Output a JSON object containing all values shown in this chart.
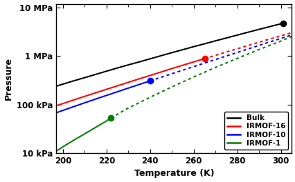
{
  "xlabel": "Temperature (K)",
  "ylabel": "Pressure",
  "xlim": [
    197,
    305
  ],
  "ylim_log": [
    10000.0,
    12000000.0
  ],
  "xticks": [
    200,
    220,
    240,
    260,
    280,
    300
  ],
  "yticks_log": [
    10000.0,
    100000.0,
    1000000.0,
    10000000.0
  ],
  "ytick_labels": [
    "10 kPa",
    "100 kPa",
    "1 MPa",
    "10 MPa"
  ],
  "bg_color": "#ffffff",
  "series": {
    "bulk": {
      "color": "black",
      "x_solid": [
        197,
        200,
        205,
        210,
        215,
        220,
        225,
        230,
        235,
        240,
        245,
        250,
        255,
        260,
        265,
        270,
        275,
        280,
        285,
        290,
        295,
        300,
        302
      ],
      "y_solid": [
        240000.0,
        265000.0,
        310000.0,
        360000.0,
        420000.0,
        490000.0,
        570000.0,
        660000.0,
        760000.0,
        880000.0,
        1020000.0,
        1180000.0,
        1360000.0,
        1570000.0,
        1800000.0,
        2070000.0,
        2370000.0,
        2720000.0,
        3120000.0,
        3570000.0,
        4080000.0,
        4650000.0,
        4900000.0
      ],
      "dot_x": 301,
      "dot_y": 4780000.0
    },
    "irmof16": {
      "color": "red",
      "x_solid": [
        197,
        200,
        205,
        210,
        215,
        220,
        225,
        230,
        235,
        240,
        245,
        250,
        255,
        260,
        265
      ],
      "y_solid": [
        95000.0,
        105000.0,
        125000.0,
        148000.0,
        175000.0,
        207000.0,
        244000.0,
        288000.0,
        340000.0,
        400000.0,
        470000.0,
        555000.0,
        650000.0,
        760000.0,
        890000.0
      ],
      "x_dotted": [
        265,
        270,
        275,
        280,
        285,
        290,
        295,
        300,
        305
      ],
      "y_dotted": [
        890000.0,
        1040000.0,
        1220000.0,
        1420000.0,
        1660000.0,
        1940000.0,
        2260000.0,
        2620000.0,
        3050000.0
      ],
      "dot_x": 265,
      "dot_y": 890000.0
    },
    "irmof10": {
      "color": "blue",
      "x_solid": [
        197,
        200,
        205,
        210,
        215,
        220,
        225,
        230,
        235,
        240
      ],
      "y_solid": [
        68000.0,
        76000.0,
        91000.0,
        109000.0,
        130000.0,
        155000.0,
        184000.0,
        219000.0,
        260000.0,
        309000.0
      ],
      "x_dotted": [
        240,
        245,
        250,
        255,
        260,
        265,
        270,
        275,
        280,
        285,
        290,
        295,
        300,
        305
      ],
      "y_dotted": [
        309000.0,
        366000.0,
        434000.0,
        514000.0,
        608000.0,
        720000.0,
        852000.0,
        1010000.0,
        1190000.0,
        1410000.0,
        1670000.0,
        1970000.0,
        2320000.0,
        2740000.0
      ],
      "dot_x": 240,
      "dot_y": 309000.0
    },
    "irmof1": {
      "color": "green",
      "x_solid": [
        197,
        200,
        205,
        210,
        215,
        220,
        222
      ],
      "y_solid": [
        11000.0,
        13500.0,
        18500.0,
        25000.0,
        34000.0,
        46000.0,
        53000.0
      ],
      "x_dotted": [
        222,
        230,
        240,
        250,
        260,
        270,
        280,
        290,
        300,
        305
      ],
      "y_dotted": [
        53000.0,
        85000.0,
        142000.0,
        232000.0,
        372000.0,
        585000.0,
        900000.0,
        1370000.0,
        2050000.0,
        2550000.0
      ],
      "dot_x": 222,
      "dot_y": 53000.0
    }
  },
  "legend_entries": [
    "Bulk",
    "IRMOF-16",
    "IRMOF-10",
    "IRMOF-1"
  ],
  "legend_colors": [
    "black",
    "red",
    "blue",
    "green"
  ]
}
